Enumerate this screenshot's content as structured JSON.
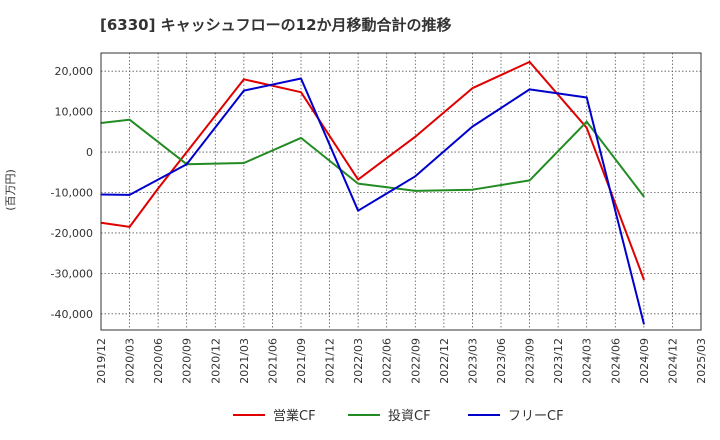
{
  "chart_data": {
    "type": "line",
    "title": "[6330]  キャッシュフローの12か月移動合計の推移",
    "ylabel": "(百万円)",
    "xlabel": "",
    "ylim": [
      -44000,
      24500
    ],
    "y_ticks": [
      20000,
      10000,
      0,
      -10000,
      -20000,
      -30000,
      -40000
    ],
    "y_tick_labels": [
      "20,000",
      "10,000",
      "0",
      "-10,000",
      "-20,000",
      "-30,000",
      "-40,000"
    ],
    "categories": [
      "2019/12",
      "2020/03",
      "2020/06",
      "2020/09",
      "2020/12",
      "2021/03",
      "2021/06",
      "2021/09",
      "2021/12",
      "2022/03",
      "2022/06",
      "2022/09",
      "2022/12",
      "2023/03",
      "2023/06",
      "2023/09",
      "2023/12",
      "2024/03",
      "2024/06",
      "2024/09",
      "2024/12",
      "2025/03"
    ],
    "grid": true,
    "legend_position": "bottom",
    "series": [
      {
        "name": "営業CF",
        "color": "#e00000",
        "values": [
          -17500,
          -18500,
          -9000,
          0,
          null,
          18000,
          null,
          14800,
          null,
          -6800,
          null,
          3800,
          null,
          15800,
          null,
          22300,
          null,
          6000,
          null,
          -31500,
          null,
          null
        ]
      },
      {
        "name": "投資CF",
        "color": "#228b22",
        "values": [
          7200,
          8000,
          null,
          -3000,
          null,
          -2700,
          null,
          3500,
          null,
          -7800,
          null,
          -9600,
          null,
          -9300,
          null,
          -7000,
          null,
          7500,
          null,
          -11000,
          null,
          null
        ]
      },
      {
        "name": "フリーCF",
        "color": "#0000cc",
        "values": [
          -10500,
          -10600,
          null,
          -3000,
          null,
          15200,
          null,
          18200,
          null,
          -14500,
          null,
          -6000,
          null,
          6300,
          null,
          15500,
          null,
          13500,
          null,
          -42500,
          null,
          null
        ]
      }
    ]
  }
}
